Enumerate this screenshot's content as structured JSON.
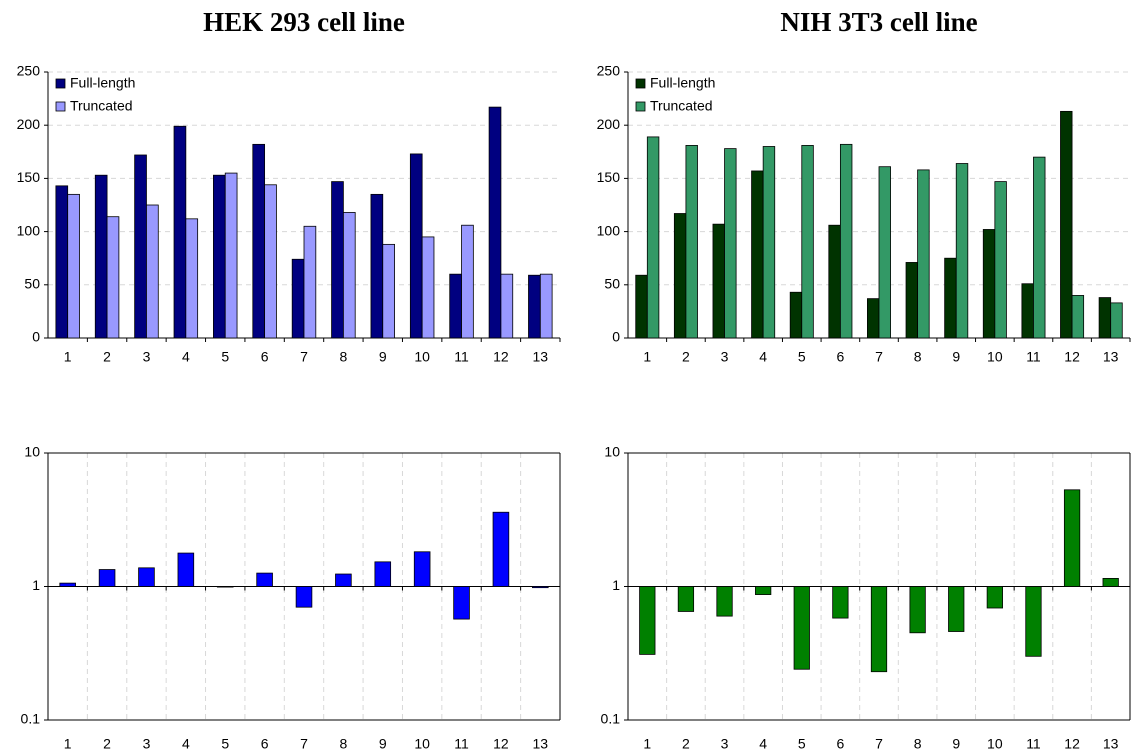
{
  "chart_data": [
    {
      "type": "bar",
      "title": "HEK 293 cell line",
      "categories": [
        "1",
        "2",
        "3",
        "4",
        "5",
        "6",
        "7",
        "8",
        "9",
        "10",
        "11",
        "12",
        "13"
      ],
      "series": [
        {
          "name": "Full-length",
          "color": "#000080",
          "values": [
            143,
            153,
            172,
            199,
            153,
            182,
            74,
            147,
            135,
            173,
            60,
            217,
            59
          ]
        },
        {
          "name": "Truncated",
          "color": "#9999ff",
          "values": [
            135,
            114,
            125,
            112,
            155,
            144,
            105,
            118,
            88,
            95,
            106,
            60,
            60
          ]
        }
      ],
      "ylim": [
        0,
        250
      ],
      "yticks": [
        0,
        50,
        100,
        150,
        200,
        250
      ],
      "grid": "y",
      "legend": "upper left"
    },
    {
      "type": "bar",
      "title": "NIH 3T3 cell line",
      "categories": [
        "1",
        "2",
        "3",
        "4",
        "5",
        "6",
        "7",
        "8",
        "9",
        "10",
        "11",
        "12",
        "13"
      ],
      "series": [
        {
          "name": "Full-length",
          "color": "#003300",
          "values": [
            59,
            117,
            107,
            157,
            43,
            106,
            37,
            71,
            75,
            102,
            51,
            213,
            38
          ]
        },
        {
          "name": "Truncated",
          "color": "#339966",
          "values": [
            189,
            181,
            178,
            180,
            181,
            182,
            161,
            158,
            164,
            147,
            170,
            40,
            33
          ]
        }
      ],
      "ylim": [
        0,
        250
      ],
      "yticks": [
        0,
        50,
        100,
        150,
        200,
        250
      ],
      "grid": "y",
      "legend": "upper left"
    },
    {
      "type": "bar",
      "categories": [
        "1",
        "2",
        "3",
        "4",
        "5",
        "6",
        "7",
        "8",
        "9",
        "10",
        "11",
        "12",
        "13"
      ],
      "values": [
        1.06,
        1.34,
        1.38,
        1.78,
        0.99,
        1.26,
        0.7,
        1.24,
        1.53,
        1.82,
        0.57,
        3.6,
        0.98
      ],
      "color": "#0000ff",
      "log_scale": true,
      "baseline": 1,
      "ylim": [
        0.1,
        10
      ],
      "yticks": [
        0.1,
        1,
        10
      ],
      "grid": "both"
    },
    {
      "type": "bar",
      "categories": [
        "1",
        "2",
        "3",
        "4",
        "5",
        "6",
        "7",
        "8",
        "9",
        "10",
        "11",
        "12",
        "13"
      ],
      "values": [
        0.31,
        0.65,
        0.6,
        0.87,
        0.24,
        0.58,
        0.23,
        0.45,
        0.46,
        0.69,
        0.3,
        5.3,
        1.15
      ],
      "color": "#008000",
      "log_scale": true,
      "baseline": 1,
      "ylim": [
        0.1,
        10
      ],
      "yticks": [
        0.1,
        1,
        10
      ],
      "grid": "both"
    }
  ]
}
